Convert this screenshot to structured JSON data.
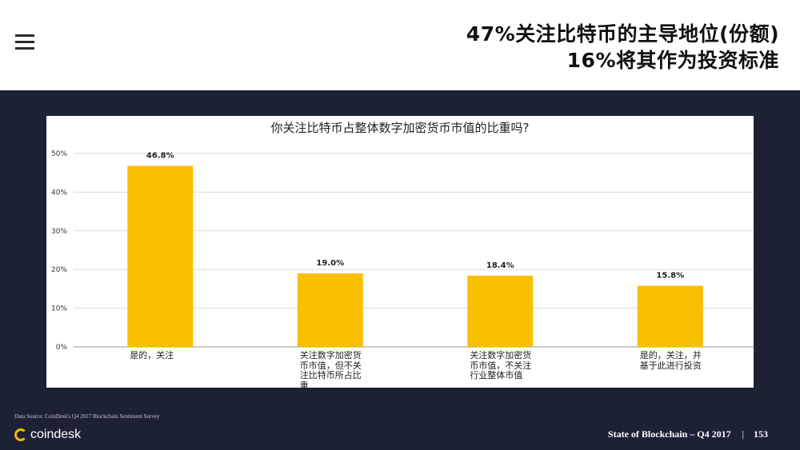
{
  "header": {
    "headline_line1": "47%关注比特币的主导地位(份额)",
    "headline_line2": "16%将其作为投资标准"
  },
  "chart_data": {
    "type": "bar",
    "title": "你关注比特币占整体数字加密货币市值的比重吗?",
    "categories": [
      "是的，关注",
      "关注数字加密货币市值，但不关注比特币所占比重",
      "关注数字加密货币市值，不关注行业整体市值",
      "是的，关注，并基于此进行投资"
    ],
    "values": [
      46.8,
      19.0,
      18.4,
      15.8
    ],
    "value_labels": [
      "46.8%",
      "19.0%",
      "18.4%",
      "15.8%"
    ],
    "yticks": [
      "0%",
      "10%",
      "20%",
      "30%",
      "40%",
      "50%"
    ],
    "ylim": [
      0,
      50
    ],
    "bar_color": "#f8c000",
    "grid": true
  },
  "footer": {
    "source": "Data Source: CoinDesk's Q4 2017 Blockchain Sentiment Survey",
    "logo_text": "coindesk",
    "report": "State of Blockchain – Q4 2017",
    "separator": "|",
    "page": "153"
  },
  "colors": {
    "background_dark": "#1d2136",
    "bar": "#f8c000",
    "logo_accent": "#f6b800"
  }
}
